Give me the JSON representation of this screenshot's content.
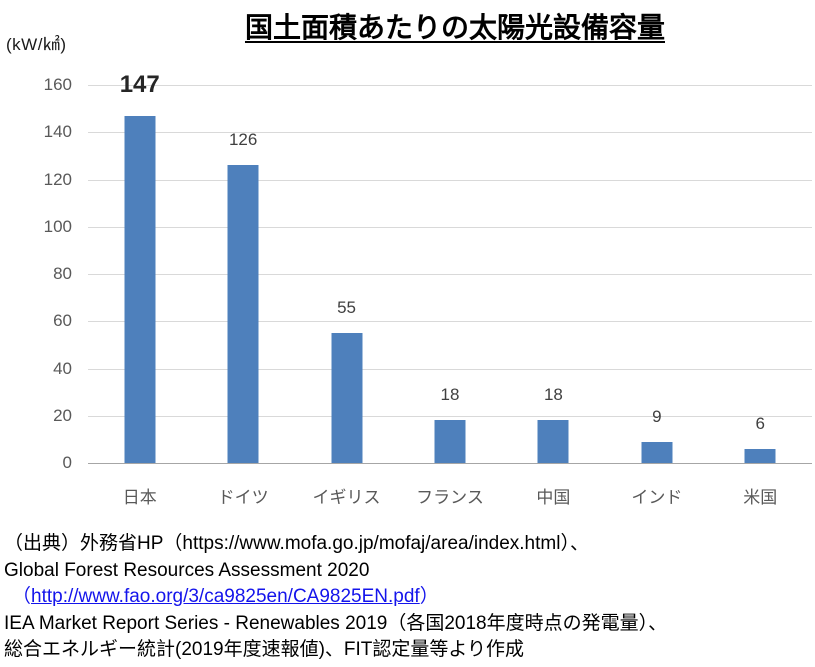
{
  "header": {
    "unit_label": "(kW/㎢)",
    "title": "国土面積あたりの太陽光設備容量"
  },
  "chart_data": {
    "type": "bar",
    "title": "国土面積あたりの太陽光設備容量",
    "ylabel": "kW/㎢",
    "categories": [
      "日本",
      "ドイツ",
      "イギリス",
      "フランス",
      "中国",
      "インド",
      "米国"
    ],
    "values": [
      147,
      126,
      55,
      18,
      18,
      9,
      6
    ],
    "value_labels": [
      "147",
      "126",
      "55",
      "18",
      "18",
      "9",
      "6"
    ],
    "emphasized_index": 0,
    "ylim": [
      0,
      160
    ],
    "yticks": [
      160,
      140,
      120,
      100,
      80,
      60,
      40,
      20,
      0
    ],
    "grid": true,
    "legend_position": "none",
    "bar_color": "#4E80BC",
    "gridline_color": "#d9d9d9",
    "axis_line_color": "#a6a6a6",
    "tick_label_color": "#595959",
    "value_label_color": "#404040"
  },
  "source": {
    "line1": "（出典）外務省HP（https://www.mofa.go.jp/mofaj/area/index.html）、",
    "line2": "Global Forest Resources Assessment 2020",
    "line3_open": "（",
    "line3_link": "http://www.fao.org/3/ca9825en/CA9825EN.pdf",
    "line3_close": "）",
    "line3_link_color": "#1414EB",
    "line4": "IEA Market Report Series - Renewables 2019（各国2018年度時点の発電量）、",
    "line5": "総合エネルギー統計(2019年度速報値)、FIT認定量等より作成"
  }
}
